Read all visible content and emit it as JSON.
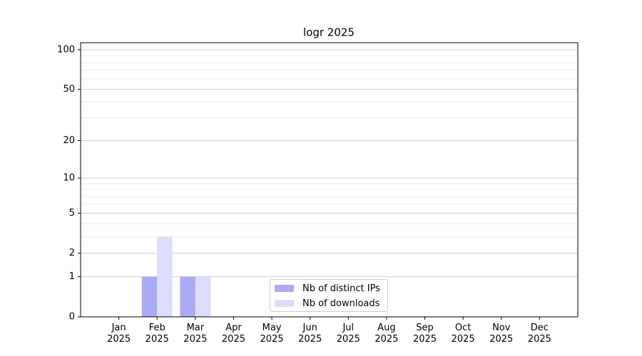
{
  "chart_data": {
    "type": "bar",
    "title": "logr 2025",
    "categories": [
      "Jan\n2025",
      "Feb\n2025",
      "Mar\n2025",
      "Apr\n2025",
      "May\n2025",
      "Jun\n2025",
      "Jul\n2025",
      "Aug\n2025",
      "Sep\n2025",
      "Oct\n2025",
      "Nov\n2025",
      "Dec\n2025"
    ],
    "series": [
      {
        "name": "Nb of distinct IPs",
        "color": "#aaaaf5",
        "values": [
          0,
          1,
          1,
          0,
          0,
          0,
          0,
          0,
          0,
          0,
          0,
          0
        ]
      },
      {
        "name": "Nb of downloads",
        "color": "#dcdcfc",
        "values": [
          0,
          3,
          1,
          0,
          0,
          0,
          0,
          0,
          0,
          0,
          0,
          0
        ]
      }
    ],
    "scale": "log1p",
    "ylim": [
      0,
      113
    ],
    "yticks": [
      0,
      1,
      2,
      5,
      10,
      20,
      50,
      100
    ],
    "minor_yticks": [
      3,
      4,
      6,
      7,
      8,
      9,
      30,
      40,
      60,
      70,
      80,
      90
    ],
    "grid": true,
    "legend": "lower center"
  }
}
